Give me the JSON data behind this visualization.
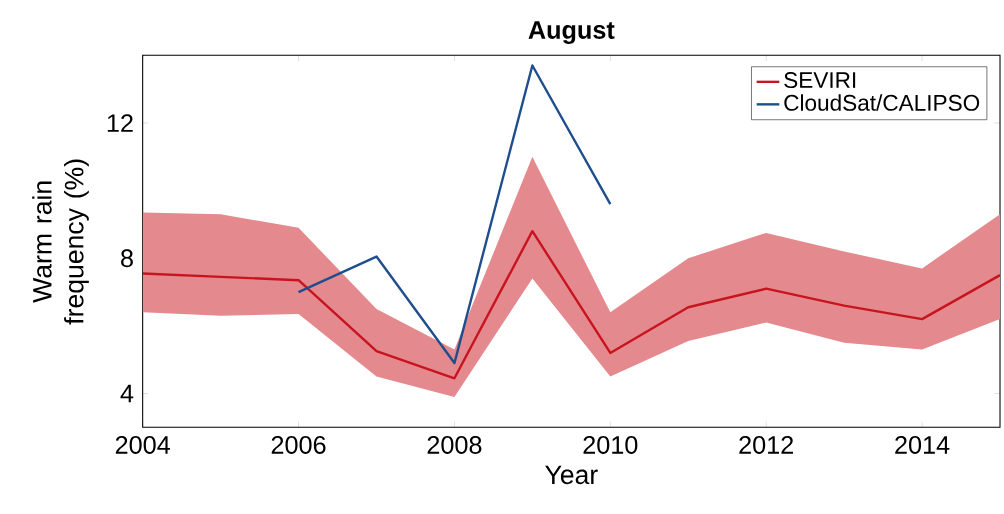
{
  "chart_data": {
    "type": "line",
    "title": "August",
    "xlabel": "Year",
    "ylabel": "Warm rain frequency (%)",
    "xlim": [
      2004,
      2015
    ],
    "ylim": [
      3,
      14
    ],
    "xticks": [
      2004,
      2006,
      2008,
      2010,
      2012,
      2014
    ],
    "yticks": [
      4,
      8,
      12
    ],
    "legend": "top right",
    "grid": false,
    "line_style": "solid",
    "series": [
      {
        "name": "SEVIRI",
        "color": "#c8141e",
        "x": [
          2004,
          2005,
          2006,
          2007,
          2008,
          2009,
          2010,
          2011,
          2012,
          2013,
          2014,
          2015
        ],
        "values": [
          7.55,
          7.45,
          7.35,
          5.25,
          4.45,
          8.8,
          5.2,
          6.55,
          7.1,
          6.6,
          6.2,
          7.5
        ],
        "upper": [
          9.35,
          9.3,
          8.9,
          6.5,
          5.3,
          11.0,
          6.4,
          8.0,
          8.75,
          8.2,
          7.7,
          9.3
        ],
        "lower": [
          6.4,
          6.3,
          6.35,
          4.5,
          3.9,
          7.4,
          4.5,
          5.55,
          6.1,
          5.5,
          5.3,
          6.2
        ]
      },
      {
        "name": "CloudSat/CALIPSO",
        "color": "#1f4e8c",
        "x": [
          2006,
          2007,
          2008,
          2009,
          2010
        ],
        "values": [
          7.0,
          8.05,
          4.9,
          13.7,
          9.6
        ]
      }
    ]
  }
}
